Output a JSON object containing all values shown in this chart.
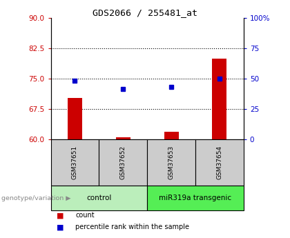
{
  "title": "GDS2066 / 255481_at",
  "samples": [
    "GSM37651",
    "GSM37652",
    "GSM37653",
    "GSM37654"
  ],
  "red_values": [
    70.2,
    60.5,
    61.8,
    80.0
  ],
  "blue_values": [
    74.5,
    72.5,
    73.0,
    75.0
  ],
  "ylim_left": [
    60,
    90
  ],
  "yticks_left": [
    60,
    67.5,
    75,
    82.5,
    90
  ],
  "ytick_right_labels": [
    "0",
    "25",
    "50",
    "75",
    "100%"
  ],
  "hlines": [
    67.5,
    75,
    82.5
  ],
  "groups": [
    {
      "label": "control",
      "samples_idx": [
        0,
        1
      ],
      "color": "#bbeebb"
    },
    {
      "label": "miR319a transgenic",
      "samples_idx": [
        2,
        3
      ],
      "color": "#55ee55"
    }
  ],
  "red_color": "#cc0000",
  "blue_color": "#0000cc",
  "genotype_label": "genotype/variation"
}
